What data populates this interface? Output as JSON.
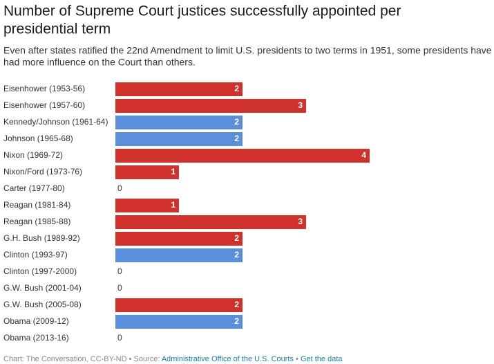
{
  "chart_data": {
    "type": "bar",
    "title": [
      "Number of Supreme Court justices successfully appointed per",
      "presidential term"
    ],
    "subtitle": [
      "Even after states ratified the 22nd Amendment to limit U.S. presidents to two terms in 1951, some presidents have",
      "had more influence on the Court than others."
    ],
    "categories": [
      "Eisenhower (1953-56)",
      "Eisenhower (1957-60)",
      "Kennedy/Johnson (1961-64)",
      "Johnson (1965-68)",
      "Nixon (1969-72)",
      "Nixon/Ford (1973-76)",
      "Carter (1977-80)",
      "Reagan (1981-84)",
      "Reagan (1985-88)",
      "G.H. Bush (1989-92)",
      "Clinton (1993-97)",
      "Clinton (1997-2000)",
      "G.W. Bush (2001-04)",
      "G.W. Bush (2005-08)",
      "Obama (2009-12)",
      "Obama (2013-16)"
    ],
    "values": [
      2,
      3,
      2,
      2,
      4,
      1,
      0,
      1,
      3,
      2,
      2,
      0,
      0,
      2,
      2,
      0
    ],
    "colors": [
      "#d0312d",
      "#d0312d",
      "#5b8fdb",
      "#5b8fdb",
      "#d0312d",
      "#d0312d",
      "#5b8fdb",
      "#d0312d",
      "#d0312d",
      "#d0312d",
      "#5b8fdb",
      "#5b8fdb",
      "#d0312d",
      "#d0312d",
      "#5b8fdb",
      "#5b8fdb"
    ],
    "footer": {
      "credit": "Chart: The Conversation, CC-BY-ND • Source: ",
      "source": "Administrative Office of the U.S. Courts",
      "separator": " • ",
      "get_data": "Get the data"
    }
  }
}
